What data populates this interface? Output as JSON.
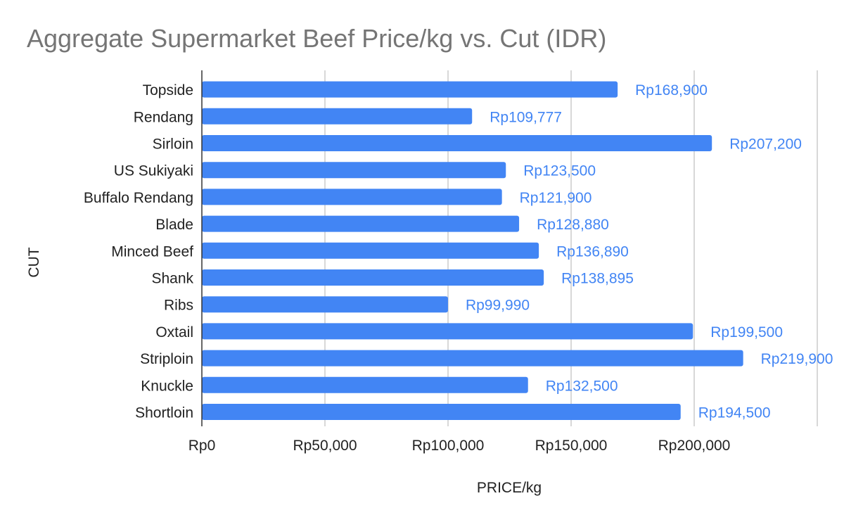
{
  "chart_data": {
    "type": "bar",
    "orientation": "horizontal",
    "title": "Aggregate Supermarket Beef Price/kg vs. Cut (IDR)",
    "xlabel": "PRICE/kg",
    "ylabel": "CUT",
    "categories": [
      "Topside",
      "Rendang",
      "Sirloin",
      "US Sukiyaki",
      "Buffalo Rendang",
      "Blade",
      "Minced Beef",
      "Shank",
      "Ribs",
      "Oxtail",
      "Striploin",
      "Knuckle",
      "Shortloin"
    ],
    "values": [
      168900,
      109777,
      207200,
      123500,
      121900,
      128880,
      136890,
      138895,
      99990,
      199500,
      219900,
      132500,
      194500
    ],
    "data_labels": [
      "Rp168,900",
      "Rp109,777",
      "Rp207,200",
      "Rp123,500",
      "Rp121,900",
      "Rp128,880",
      "Rp136,890",
      "Rp138,895",
      "Rp99,990",
      "Rp199,500",
      "Rp219,900",
      "Rp132,500",
      "Rp194,500"
    ],
    "x_ticks": [
      0,
      50000,
      100000,
      150000,
      200000
    ],
    "x_tick_labels": [
      "Rp0",
      "Rp50,000",
      "Rp100,000",
      "Rp150,000",
      "Rp200,000"
    ],
    "xlim": [
      0,
      250000
    ],
    "grid": true,
    "legend": "none",
    "colors": {
      "bar": "#4285f4",
      "data_label": "#4285f4",
      "title": "#757575",
      "axis_text": "#222222",
      "grid": "#cccccc"
    }
  }
}
